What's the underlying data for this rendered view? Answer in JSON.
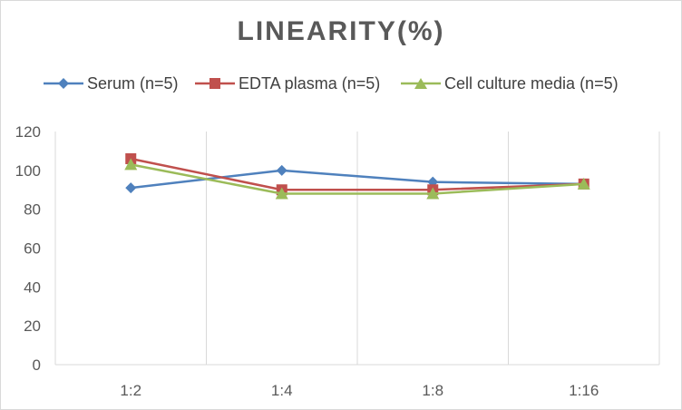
{
  "chart_data": {
    "type": "line",
    "title": "LINEARITY(%)",
    "xlabel": "",
    "ylabel": "",
    "categories": [
      "1:2",
      "1:4",
      "1:8",
      "1:16"
    ],
    "ylim": [
      0,
      120
    ],
    "yticks": [
      0,
      20,
      40,
      60,
      80,
      100,
      120
    ],
    "grid": "vertical",
    "legend_position": "top",
    "series": [
      {
        "name": "Serum (n=5)",
        "values": [
          91,
          100,
          94,
          93
        ],
        "color": "#4f81bd",
        "marker": "diamond"
      },
      {
        "name": "EDTA plasma (n=5)",
        "values": [
          106,
          90,
          90,
          93
        ],
        "color": "#c0504d",
        "marker": "square"
      },
      {
        "name": "Cell culture media (n=5)",
        "values": [
          103,
          88,
          88,
          93
        ],
        "color": "#9bbb59",
        "marker": "triangle"
      }
    ]
  }
}
